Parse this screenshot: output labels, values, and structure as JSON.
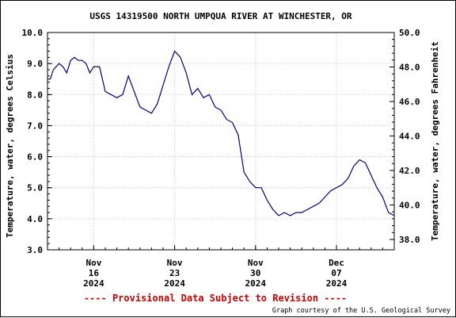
{
  "chart_data": {
    "type": "line",
    "title": "USGS 14319500 NORTH UMPQUA RIVER AT WINCHESTER, OR",
    "ylabel_left": "Temperature, water, degrees Celsius",
    "ylabel_right": "Temperature, water, degrees Fahrenheit",
    "ylim_left": [
      3.0,
      10.0
    ],
    "ylim_right": [
      37.4,
      50.0
    ],
    "yticks_left": [
      "10.0",
      "9.0",
      "8.0",
      "7.0",
      "6.0",
      "5.0",
      "4.0",
      "3.0"
    ],
    "yticks_right": [
      "50.0",
      "48.0",
      "46.0",
      "44.0",
      "42.0",
      "40.0",
      "38.0"
    ],
    "x_range_days": [
      "2024-11-12",
      "2024-12-12"
    ],
    "xticks": [
      {
        "date": "2024-11-16",
        "month": "Nov",
        "day": "16",
        "year": "2024"
      },
      {
        "date": "2024-11-23",
        "month": "Nov",
        "day": "23",
        "year": "2024"
      },
      {
        "date": "2024-11-30",
        "month": "Nov",
        "day": "30",
        "year": "2024"
      },
      {
        "date": "2024-12-07",
        "month": "Dec",
        "day": "07",
        "year": "2024"
      }
    ],
    "grid": true,
    "line_color": "#000080",
    "series": [
      {
        "name": "",
        "x": [
          "2024-11-12T00:00",
          "2024-11-12T06:00",
          "2024-11-12T12:00",
          "2024-11-13T00:00",
          "2024-11-13T08:00",
          "2024-11-13T16:00",
          "2024-11-14T00:00",
          "2024-11-14T08:00",
          "2024-11-14T16:00",
          "2024-11-15T00:00",
          "2024-11-15T08:00",
          "2024-11-15T16:00",
          "2024-11-16T00:00",
          "2024-11-16T12:00",
          "2024-11-17T00:00",
          "2024-11-17T12:00",
          "2024-11-18T00:00",
          "2024-11-18T12:00",
          "2024-11-19T00:00",
          "2024-11-19T12:00",
          "2024-11-20T00:00",
          "2024-11-20T12:00",
          "2024-11-21T00:00",
          "2024-11-21T12:00",
          "2024-11-22T00:00",
          "2024-11-22T12:00",
          "2024-11-23T00:00",
          "2024-11-23T12:00",
          "2024-11-24T00:00",
          "2024-11-24T12:00",
          "2024-11-25T00:00",
          "2024-11-25T12:00",
          "2024-11-26T00:00",
          "2024-11-26T12:00",
          "2024-11-27T00:00",
          "2024-11-27T12:00",
          "2024-11-28T00:00",
          "2024-11-28T12:00",
          "2024-11-29T00:00",
          "2024-11-29T12:00",
          "2024-11-30T00:00",
          "2024-11-30T12:00",
          "2024-12-01T00:00",
          "2024-12-01T12:00",
          "2024-12-02T00:00",
          "2024-12-02T12:00",
          "2024-12-03T00:00",
          "2024-12-03T12:00",
          "2024-12-04T00:00",
          "2024-12-04T12:00",
          "2024-12-05T00:00",
          "2024-12-05T12:00",
          "2024-12-06T00:00",
          "2024-12-06T12:00",
          "2024-12-07T00:00",
          "2024-12-07T12:00",
          "2024-12-08T00:00",
          "2024-12-08T12:00",
          "2024-12-09T00:00",
          "2024-12-09T12:00",
          "2024-12-10T00:00",
          "2024-12-10T12:00",
          "2024-12-11T00:00",
          "2024-12-11T12:00",
          "2024-12-12T00:00"
        ],
        "values": [
          8.5,
          8.5,
          8.8,
          9.0,
          8.9,
          8.7,
          9.1,
          9.2,
          9.1,
          9.1,
          9.0,
          8.7,
          8.9,
          8.9,
          8.1,
          8.0,
          7.9,
          8.0,
          8.6,
          8.1,
          7.6,
          7.5,
          7.4,
          7.7,
          8.3,
          8.9,
          9.4,
          9.2,
          8.7,
          8.0,
          8.2,
          7.9,
          8.0,
          7.6,
          7.5,
          7.2,
          7.1,
          6.7,
          5.5,
          5.2,
          5.0,
          5.0,
          4.6,
          4.3,
          4.1,
          4.2,
          4.1,
          4.2,
          4.2,
          4.3,
          4.4,
          4.5,
          4.7,
          4.9,
          5.0,
          5.1,
          5.3,
          5.7,
          5.9,
          5.8,
          5.4,
          5.0,
          4.7,
          4.2,
          4.1
        ]
      }
    ]
  },
  "footer": {
    "provisional": "---- Provisional Data Subject to Revision ----",
    "credit": "Graph courtesy of the U.S. Geological Survey"
  }
}
